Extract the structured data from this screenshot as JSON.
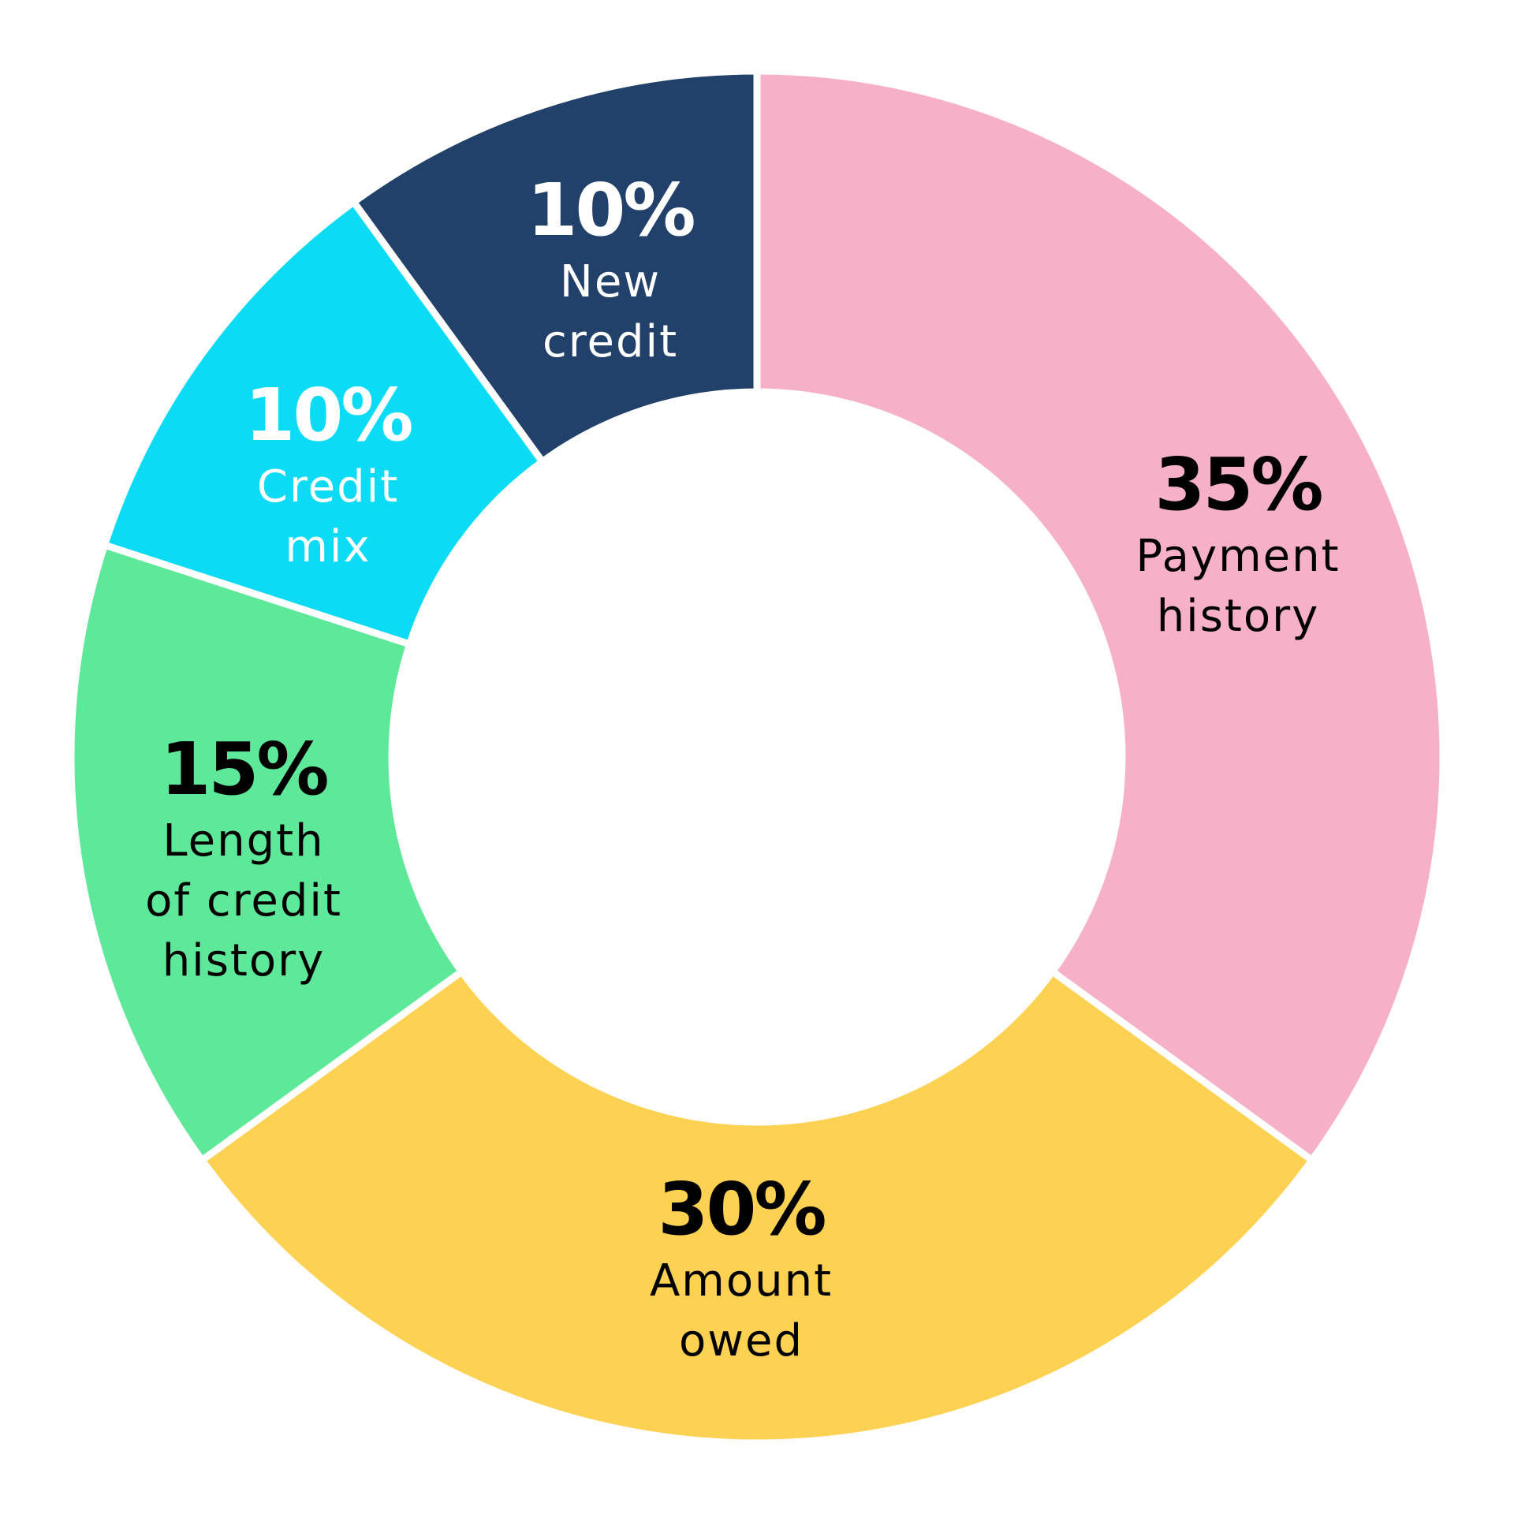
{
  "chart_data": {
    "type": "pie",
    "donut": true,
    "start": "top",
    "direction": "clockwise",
    "slices": [
      {
        "percent_label": "35%",
        "label_lines": [
          "Payment",
          "history"
        ],
        "value": 35,
        "color": "#F6B1C8",
        "text_color": "#000000"
      },
      {
        "percent_label": "30%",
        "label_lines": [
          "Amount",
          "owed"
        ],
        "value": 30,
        "color": "#FDD152",
        "text_color": "#000000"
      },
      {
        "percent_label": "15%",
        "label_lines": [
          "Length",
          "of credit",
          "history"
        ],
        "value": 15,
        "color": "#5EE89A",
        "text_color": "#000000"
      },
      {
        "percent_label": "10%",
        "label_lines": [
          "Credit",
          "mix"
        ],
        "value": 10,
        "color": "#0BDBF5",
        "text_color": "#FFFFFF"
      },
      {
        "percent_label": "10%",
        "label_lines": [
          "New",
          "credit"
        ],
        "value": 10,
        "color": "#22416A",
        "text_color": "#FFFFFF"
      }
    ]
  }
}
